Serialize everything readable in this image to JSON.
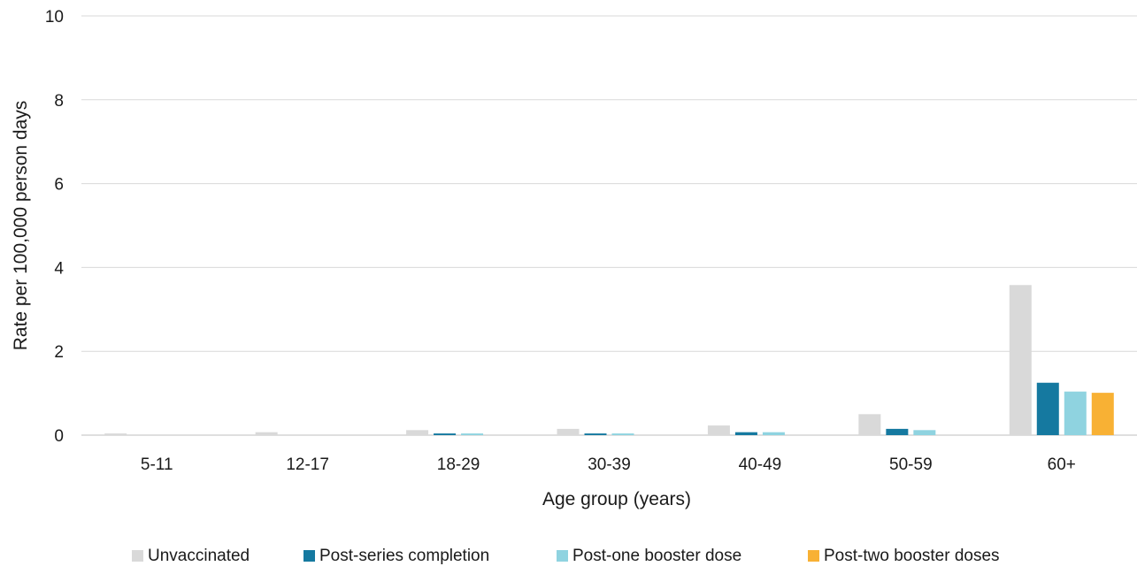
{
  "chart_data": {
    "type": "bar",
    "title": "",
    "xlabel": "Age group (years)",
    "ylabel": "Rate per 100,000 person days",
    "categories": [
      "5-11",
      "12-17",
      "18-29",
      "30-39",
      "40-49",
      "50-59",
      "60+"
    ],
    "ylim": [
      0,
      10
    ],
    "yticks": [
      "0",
      "2",
      "4",
      "6",
      "8",
      "10"
    ],
    "grid": true,
    "legend_position": "bottom",
    "series": [
      {
        "name": "Unvaccinated",
        "color": "#d9d9d9",
        "values": [
          0.04,
          0.07,
          0.12,
          0.15,
          0.23,
          0.5,
          3.58
        ]
      },
      {
        "name": "Post-series completion",
        "color": "#1579a0",
        "values": [
          null,
          null,
          0.04,
          0.04,
          0.07,
          0.15,
          1.25
        ]
      },
      {
        "name": "Post-one booster dose",
        "color": "#8fd3e0",
        "values": [
          null,
          null,
          0.04,
          0.04,
          0.07,
          0.12,
          1.04
        ]
      },
      {
        "name": "Post-two booster doses",
        "color": "#f8b134",
        "values": [
          null,
          null,
          null,
          null,
          null,
          null,
          1.01
        ]
      }
    ]
  }
}
